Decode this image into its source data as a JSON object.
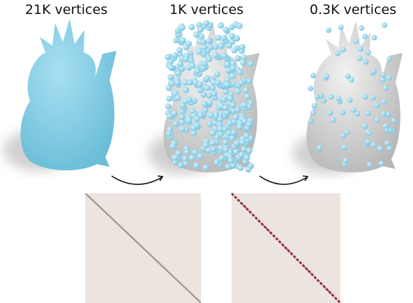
{
  "panels": [
    {
      "label": "21K vertices"
    },
    {
      "label": "1K vertices"
    },
    {
      "label": "0.3K vertices"
    }
  ]
}
